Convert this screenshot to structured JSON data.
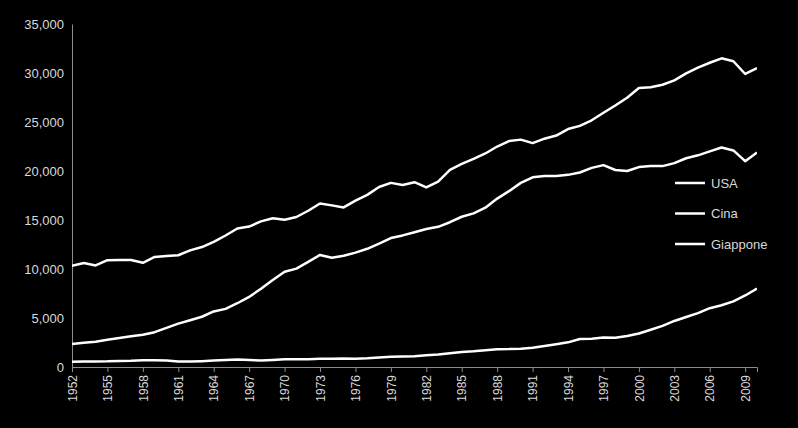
{
  "chart_data": {
    "type": "line",
    "x": [
      1952,
      1953,
      1954,
      1955,
      1956,
      1957,
      1958,
      1959,
      1960,
      1961,
      1962,
      1963,
      1964,
      1965,
      1966,
      1967,
      1968,
      1969,
      1970,
      1971,
      1972,
      1973,
      1974,
      1975,
      1976,
      1977,
      1978,
      1979,
      1980,
      1981,
      1982,
      1983,
      1984,
      1985,
      1986,
      1987,
      1988,
      1989,
      1990,
      1991,
      1992,
      1993,
      1994,
      1995,
      1996,
      1997,
      1998,
      1999,
      2000,
      2001,
      2002,
      2003,
      2004,
      2005,
      2006,
      2007,
      2008,
      2009,
      2010
    ],
    "series": [
      {
        "name": "USA",
        "color": "#ffffff",
        "values": [
          10316,
          10613,
          10359,
          10897,
          10914,
          10920,
          10631,
          11230,
          11328,
          11402,
          11905,
          12242,
          12773,
          13419,
          14134,
          14330,
          14863,
          15179,
          15030,
          15304,
          15944,
          16689,
          16491,
          16284,
          16975,
          17567,
          18373,
          18789,
          18577,
          18856,
          18325,
          18920,
          20123,
          20717,
          21236,
          21788,
          22499,
          23059,
          23201,
          22849,
          23298,
          23616,
          24279,
          24603,
          25173,
          25940,
          26682,
          27482,
          28467,
          28547,
          28798,
          29252,
          29967,
          30543,
          31048,
          31500,
          31200,
          29900,
          30500
        ]
      },
      {
        "name": "Cina",
        "color": "#ffffff",
        "values": [
          537,
          554,
          558,
          575,
          619,
          637,
          693,
          697,
          662,
          553,
          550,
          590,
          651,
          709,
          757,
          717,
          675,
          722,
          783,
          799,
          802,
          839,
          836,
          874,
          852,
          895,
          978,
          1039,
          1067,
          1103,
          1192,
          1265,
          1396,
          1522,
          1597,
          1706,
          1816,
          1827,
          1871,
          1956,
          2132,
          2312,
          2515,
          2863,
          2880,
          3013,
          2993,
          3162,
          3421,
          3800,
          4200,
          4700,
          5100,
          5500,
          6000,
          6300,
          6700,
          7300,
          8000
        ]
      },
      {
        "name": "Giappone",
        "color": "#ffffff",
        "values": [
          2336,
          2474,
          2582,
          2771,
          2948,
          3136,
          3289,
          3554,
          3986,
          4426,
          4777,
          5129,
          5668,
          5934,
          6506,
          7152,
          7983,
          8874,
          9714,
          10040,
          10734,
          11434,
          11145,
          11344,
          11669,
          12064,
          12585,
          13163,
          13428,
          13754,
          14078,
          14307,
          14773,
          15332,
          15679,
          16251,
          17185,
          17943,
          18789,
          19355,
          19482,
          19478,
          19606,
          19850,
          20316,
          20600,
          20100,
          20000,
          20400,
          20500,
          20500,
          20800,
          21300,
          21600,
          22000,
          22400,
          22100,
          21000,
          21900
        ]
      }
    ],
    "xlim": [
      1952,
      2010
    ],
    "xticks": [
      1952,
      1955,
      1958,
      1961,
      1964,
      1967,
      1970,
      1973,
      1976,
      1979,
      1982,
      1985,
      1988,
      1991,
      1994,
      1997,
      2000,
      2003,
      2006,
      2009
    ],
    "ylim": [
      0,
      35000
    ],
    "yticks": [
      0,
      {
        "value": 5000,
        "label": "5,000"
      },
      {
        "value": 10000,
        "label": "10,000"
      },
      {
        "value": 15000,
        "label": "15,000"
      },
      {
        "value": 20000,
        "label": "20,000"
      },
      {
        "value": 25000,
        "label": "25,000"
      },
      {
        "value": 30000,
        "label": "30,000"
      },
      {
        "value": 35000,
        "label": "35,000"
      }
    ],
    "grid": false,
    "legend": "right"
  }
}
